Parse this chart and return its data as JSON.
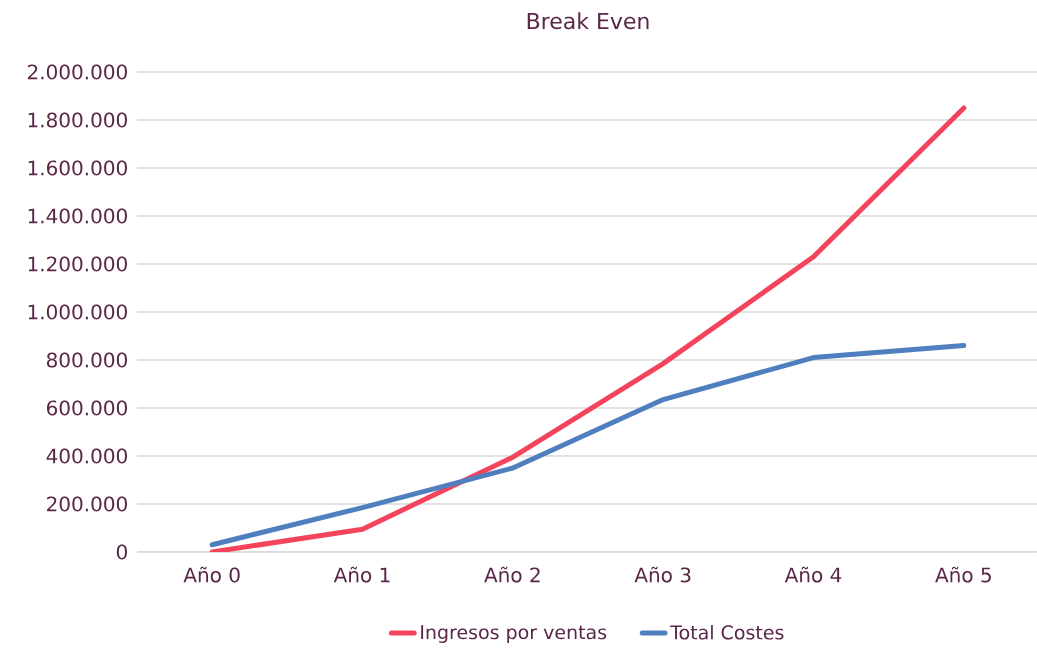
{
  "chart_data": {
    "type": "line",
    "title": "Break Even",
    "categories": [
      "Año 0",
      "Año 1",
      "Año 2",
      "Año 3",
      "Año 4",
      "Año 5"
    ],
    "series": [
      {
        "name": "Ingresos por ventas",
        "color": "#f4445c",
        "values": [
          0,
          95000,
          395000,
          785000,
          1230000,
          1850000
        ]
      },
      {
        "name": "Total Costes",
        "color": "#4f7fbe",
        "values": [
          30000,
          185000,
          350000,
          635000,
          810000,
          860000
        ]
      }
    ],
    "ylim": [
      0,
      2000000
    ],
    "yticks": [
      {
        "value": 0,
        "label": "0"
      },
      {
        "value": 200000,
        "label": "200.000"
      },
      {
        "value": 400000,
        "label": "400.000"
      },
      {
        "value": 600000,
        "label": "600.000"
      },
      {
        "value": 800000,
        "label": "800.000"
      },
      {
        "value": 1000000,
        "label": "1.000.000"
      },
      {
        "value": 1200000,
        "label": "1.200.000"
      },
      {
        "value": 1400000,
        "label": "1.400.000"
      },
      {
        "value": 1600000,
        "label": "1.600.000"
      },
      {
        "value": 1800000,
        "label": "1.800.000"
      },
      {
        "value": 2000000,
        "label": "2.000.000"
      }
    ],
    "grid": "y",
    "legend": "bottom",
    "marker": "none",
    "line_style": "solid"
  }
}
